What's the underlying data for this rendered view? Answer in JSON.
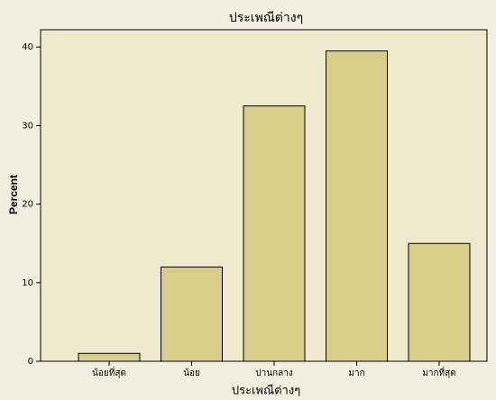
{
  "chart_data": {
    "type": "bar",
    "title": "ประเพณีต่างๆ",
    "x_label": "ประเพณีต่างๆ",
    "y_label": "Percent",
    "categories": [
      "น้อยที่สุด",
      "น้อย",
      "ปานกลาง",
      "มาก",
      "มากที่สุด"
    ],
    "values": [
      1.0,
      12.0,
      32.5,
      39.5,
      15.0
    ],
    "color": "#d8ce8c",
    "ylim": [
      0,
      42.2
    ],
    "yticks": [
      0,
      10,
      20,
      30,
      40
    ]
  }
}
